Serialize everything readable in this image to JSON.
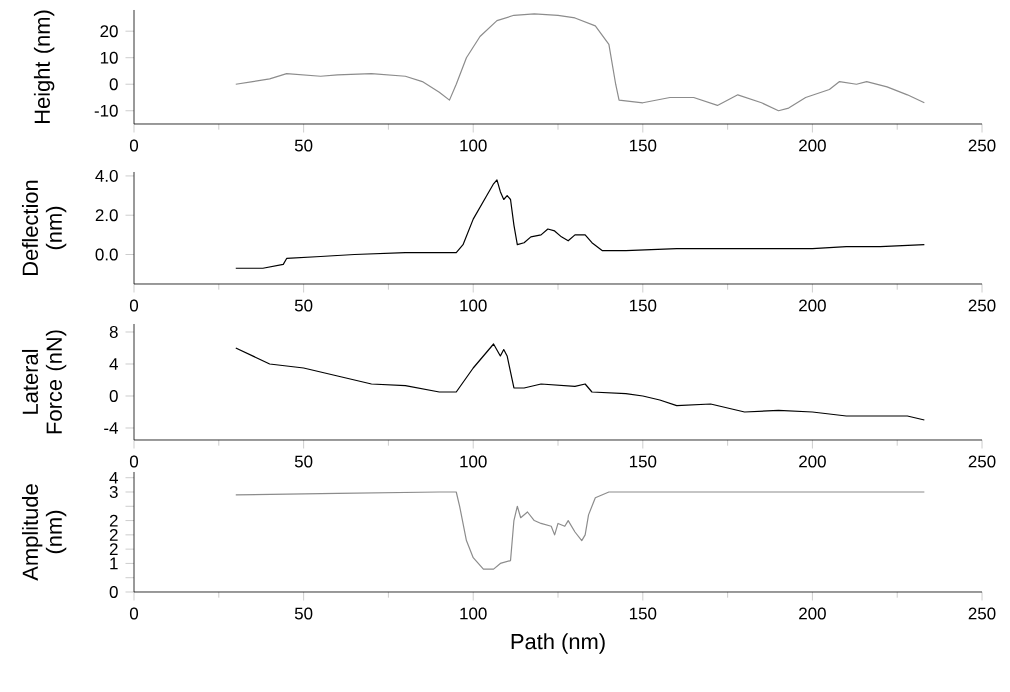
{
  "chart_data": [
    {
      "type": "line",
      "ylabel": "Height (nm)",
      "xlim": [
        0,
        250
      ],
      "xticks": [
        0,
        50,
        100,
        150,
        200,
        250
      ],
      "ylim": [
        -15,
        28
      ],
      "yticks": [
        -10,
        0,
        10,
        20
      ],
      "series": [
        {
          "color": "#8c8c8c",
          "x": [
            30,
            35,
            40,
            45,
            50,
            55,
            60,
            70,
            80,
            85,
            90,
            93,
            95,
            98,
            102,
            107,
            112,
            118,
            125,
            130,
            136,
            140,
            142,
            143,
            150,
            158,
            165,
            172,
            178,
            185,
            190,
            193,
            198,
            205,
            208,
            213,
            216,
            222,
            228,
            233
          ],
          "values": [
            0,
            1,
            2,
            4,
            3.5,
            3,
            3.5,
            4,
            3,
            1,
            -3,
            -6,
            0,
            10,
            18,
            24,
            26,
            26.5,
            26,
            25,
            22,
            15,
            0,
            -6,
            -7,
            -5,
            -5,
            -8,
            -4,
            -7,
            -10,
            -9,
            -5,
            -2,
            1,
            0,
            1,
            -1,
            -4,
            -7
          ]
        }
      ]
    },
    {
      "type": "line",
      "ylabel": "Deflection (nm)",
      "xlim": [
        0,
        250
      ],
      "xticks": [
        0,
        50,
        100,
        150,
        200,
        250
      ],
      "ylim": [
        -1.5,
        4.2
      ],
      "yticks": [
        {
          "value": 0,
          "label": "0.0"
        },
        {
          "value": 2,
          "label": "2.0"
        },
        {
          "value": 4,
          "label": "4.0"
        }
      ],
      "series": [
        {
          "color": "#000000",
          "x": [
            30,
            38,
            44,
            45,
            55,
            65,
            80,
            95,
            97,
            100,
            104,
            106,
            107,
            108,
            109,
            110,
            111,
            112,
            113,
            115,
            117,
            120,
            122,
            124,
            126,
            128,
            130,
            133,
            135,
            138,
            145,
            160,
            180,
            200,
            210,
            220,
            233
          ],
          "values": [
            -0.7,
            -0.7,
            -0.5,
            -0.2,
            -0.1,
            0.0,
            0.1,
            0.1,
            0.5,
            1.8,
            3.0,
            3.6,
            3.8,
            3.2,
            2.8,
            3.0,
            2.8,
            1.5,
            0.5,
            0.6,
            0.9,
            1.0,
            1.3,
            1.2,
            0.9,
            0.7,
            1.0,
            1.0,
            0.6,
            0.2,
            0.2,
            0.3,
            0.3,
            0.3,
            0.4,
            0.4,
            0.5
          ]
        }
      ]
    },
    {
      "type": "line",
      "ylabel": "Lateral Force (nN)",
      "xlim": [
        0,
        250
      ],
      "xticks": [
        0,
        50,
        100,
        150,
        200,
        250
      ],
      "ylim": [
        -5.5,
        9
      ],
      "yticks": [
        -4,
        0,
        4,
        8
      ],
      "series": [
        {
          "color": "#000000",
          "x": [
            30,
            35,
            40,
            50,
            60,
            70,
            80,
            90,
            95,
            100,
            104,
            106,
            108,
            109,
            110,
            111,
            112,
            115,
            120,
            130,
            133,
            135,
            145,
            150,
            155,
            160,
            170,
            180,
            190,
            200,
            210,
            220,
            228,
            233
          ],
          "values": [
            6,
            5,
            4,
            3.5,
            2.5,
            1.5,
            1.3,
            0.5,
            0.5,
            3.5,
            5.5,
            6.5,
            5,
            5.8,
            5,
            3,
            1,
            1,
            1.5,
            1.2,
            1.5,
            0.5,
            0.3,
            0,
            -0.5,
            -1.2,
            -1,
            -2,
            -1.8,
            -2,
            -2.5,
            -2.5,
            -2.5,
            -3
          ]
        }
      ]
    },
    {
      "type": "line",
      "ylabel": "Amplitude (nm)",
      "xlabel": "Path (nm)",
      "xlim": [
        0,
        250
      ],
      "xticks": [
        0,
        50,
        100,
        150,
        200,
        250
      ],
      "ylim": [
        0,
        4.2
      ],
      "yticks": [
        {
          "value": 0,
          "label": "0"
        },
        {
          "value": 0.5,
          "label": null
        },
        {
          "value": 1,
          "label": "1"
        },
        {
          "value": 1.5,
          "label": "2"
        },
        {
          "value": 2,
          "label": "2"
        },
        {
          "value": 2.5,
          "label": "2"
        },
        {
          "value": 3,
          "label": null
        },
        {
          "value": 3.5,
          "label": "3"
        },
        {
          "value": 4,
          "label": "4"
        }
      ],
      "series": [
        {
          "color": "#8c8c8c",
          "x": [
            30,
            60,
            90,
            95,
            96,
            98,
            100,
            103,
            106,
            108,
            111,
            112,
            113,
            114,
            116,
            118,
            120,
            123,
            124,
            125,
            127,
            128,
            130,
            132,
            133,
            134,
            136,
            140,
            180,
            233
          ],
          "values": [
            3.4,
            3.45,
            3.5,
            3.5,
            3.0,
            1.8,
            1.2,
            0.8,
            0.8,
            1.0,
            1.1,
            2.5,
            3.0,
            2.6,
            2.8,
            2.5,
            2.4,
            2.3,
            2.0,
            2.4,
            2.3,
            2.5,
            2.1,
            1.8,
            2.0,
            2.7,
            3.3,
            3.5,
            3.5,
            3.5
          ]
        }
      ]
    }
  ]
}
